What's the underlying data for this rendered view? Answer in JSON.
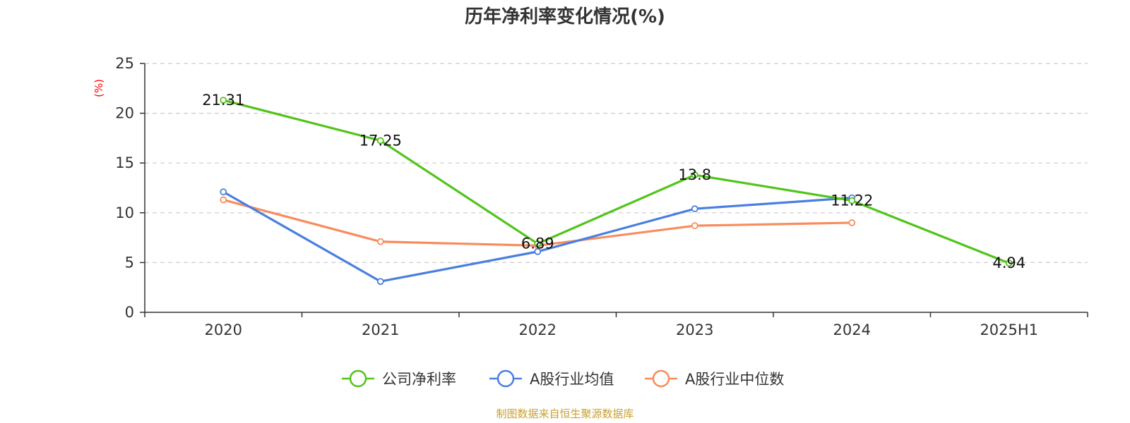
{
  "chart_data": {
    "type": "line",
    "title": "历年净利率变化情况(%)",
    "ylabel": "(%)",
    "xlabel": "",
    "categories": [
      "2020",
      "2021",
      "2022",
      "2023",
      "2024",
      "2025H1"
    ],
    "ylim": [
      0,
      25
    ],
    "yticks": [
      0,
      5,
      10,
      15,
      20,
      25
    ],
    "grid": true,
    "legend_position": "bottom",
    "series": [
      {
        "name": "公司净利率",
        "color": "#52c41a",
        "values": [
          21.31,
          17.25,
          6.89,
          13.8,
          11.22,
          4.94
        ],
        "show_labels": true
      },
      {
        "name": "A股行业均值",
        "color": "#4a7fe0",
        "values": [
          12.1,
          3.1,
          6.1,
          10.4,
          11.5,
          null
        ],
        "show_labels": false
      },
      {
        "name": "A股行业中位数",
        "color": "#f98c5c",
        "values": [
          11.3,
          7.1,
          6.7,
          8.7,
          9.0,
          null
        ],
        "show_labels": false
      }
    ],
    "data_labels": [
      "21.31",
      "17.25",
      "6.89",
      "13.8",
      "11.22",
      "4.94"
    ]
  },
  "source": "制图数据来自恒生聚源数据库",
  "colors": {
    "axis": "#333333",
    "grid": "#cccccc",
    "ylabel": "#ff0000",
    "source": "#c8a032"
  }
}
